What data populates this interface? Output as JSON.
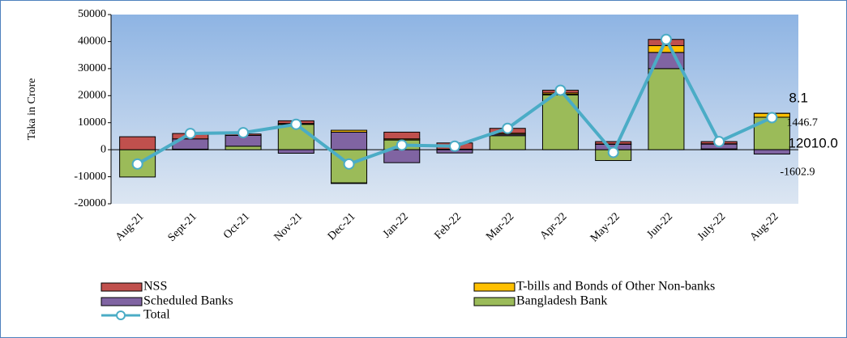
{
  "chart_data": {
    "type": "bar",
    "stacked": true,
    "y_label": "Taka in Crore",
    "categories": [
      "Aug-21",
      "Sept-21",
      "Oct-21",
      "Nov-21",
      "Dec-21",
      "Jan-22",
      "Feb-22",
      "Mar-22",
      "Apr-22",
      "May-22",
      "Jun-22",
      "July-22",
      "Aug-22"
    ],
    "series": [
      {
        "name": "NSS",
        "color": "#c0504d",
        "values": [
          4800,
          2000,
          500,
          1000,
          -200,
          2500,
          2300,
          1800,
          1000,
          900,
          2300,
          800,
          8.1
        ],
        "value_labels": [
          null,
          null,
          null,
          null,
          null,
          null,
          null,
          null,
          null,
          null,
          null,
          null,
          "8.1"
        ]
      },
      {
        "name": "T-bills and Bonds of Other Non-banks",
        "color": "#ffc000",
        "values": [
          0,
          0,
          0,
          300,
          700,
          400,
          200,
          400,
          500,
          100,
          2500,
          100,
          1446.7
        ],
        "value_labels": [
          null,
          null,
          null,
          null,
          null,
          null,
          null,
          null,
          null,
          null,
          null,
          null,
          "1446.7"
        ]
      },
      {
        "name": "Scheduled Banks",
        "color": "#8064a2",
        "values": [
          0,
          3800,
          4000,
          -1300,
          6500,
          -4800,
          -1200,
          500,
          200,
          2000,
          6000,
          1800,
          -1602.9
        ],
        "value_labels": [
          null,
          null,
          null,
          null,
          null,
          null,
          null,
          null,
          null,
          null,
          null,
          null,
          "-1602.9"
        ]
      },
      {
        "name": "Bangladesh Bank",
        "color": "#9bbb59",
        "values": [
          -10100,
          200,
          1300,
          9400,
          -12300,
          3600,
          0,
          5200,
          20300,
          -4000,
          30000,
          300,
          12010.0
        ],
        "value_labels": [
          null,
          null,
          null,
          null,
          null,
          null,
          null,
          null,
          null,
          null,
          null,
          null,
          "12010.0"
        ]
      },
      {
        "name": "Total",
        "type": "line",
        "color": "#4bacc6",
        "values": [
          -5300,
          6000,
          6300,
          9400,
          -5300,
          1700,
          1300,
          7900,
          22000,
          -1000,
          40800,
          3000,
          11861.9
        ]
      }
    ],
    "ylim": [
      -20000,
      50000
    ],
    "yticks": [
      -20000,
      -10000,
      0,
      10000,
      20000,
      30000,
      40000,
      50000
    ],
    "legend": "bottom"
  }
}
